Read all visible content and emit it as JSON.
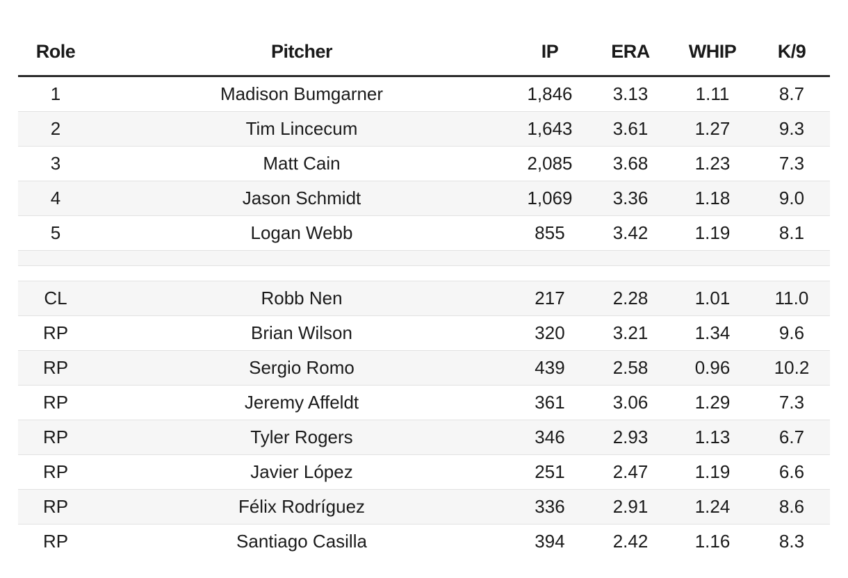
{
  "table": {
    "headers": [
      "Role",
      "Pitcher",
      "IP",
      "ERA",
      "WHIP",
      "K/9"
    ],
    "starters": [
      {
        "role": "1",
        "pitcher": "Madison Bumgarner",
        "ip": "1,846",
        "era": "3.13",
        "whip": "1.11",
        "k9": "8.7"
      },
      {
        "role": "2",
        "pitcher": "Tim Lincecum",
        "ip": "1,643",
        "era": "3.61",
        "whip": "1.27",
        "k9": "9.3"
      },
      {
        "role": "3",
        "pitcher": "Matt Cain",
        "ip": "2,085",
        "era": "3.68",
        "whip": "1.23",
        "k9": "7.3"
      },
      {
        "role": "4",
        "pitcher": "Jason Schmidt",
        "ip": "1,069",
        "era": "3.36",
        "whip": "1.18",
        "k9": "9.0"
      },
      {
        "role": "5",
        "pitcher": "Logan Webb",
        "ip": "855",
        "era": "3.42",
        "whip": "1.19",
        "k9": "8.1"
      }
    ],
    "bullpen": [
      {
        "role": "CL",
        "pitcher": "Robb Nen",
        "ip": "217",
        "era": "2.28",
        "whip": "1.01",
        "k9": "11.0"
      },
      {
        "role": "RP",
        "pitcher": "Brian Wilson",
        "ip": "320",
        "era": "3.21",
        "whip": "1.34",
        "k9": "9.6"
      },
      {
        "role": "RP",
        "pitcher": "Sergio Romo",
        "ip": "439",
        "era": "2.58",
        "whip": "0.96",
        "k9": "10.2"
      },
      {
        "role": "RP",
        "pitcher": "Jeremy Affeldt",
        "ip": "361",
        "era": "3.06",
        "whip": "1.29",
        "k9": "7.3"
      },
      {
        "role": "RP",
        "pitcher": "Tyler Rogers",
        "ip": "346",
        "era": "2.93",
        "whip": "1.13",
        "k9": "6.7"
      },
      {
        "role": "RP",
        "pitcher": "Javier López",
        "ip": "251",
        "era": "2.47",
        "whip": "1.19",
        "k9": "6.6"
      },
      {
        "role": "RP",
        "pitcher": "Félix Rodríguez",
        "ip": "336",
        "era": "2.91",
        "whip": "1.24",
        "k9": "8.6"
      },
      {
        "role": "RP",
        "pitcher": "Santiago Casilla",
        "ip": "394",
        "era": "2.42",
        "whip": "1.16",
        "k9": "8.3"
      }
    ]
  }
}
